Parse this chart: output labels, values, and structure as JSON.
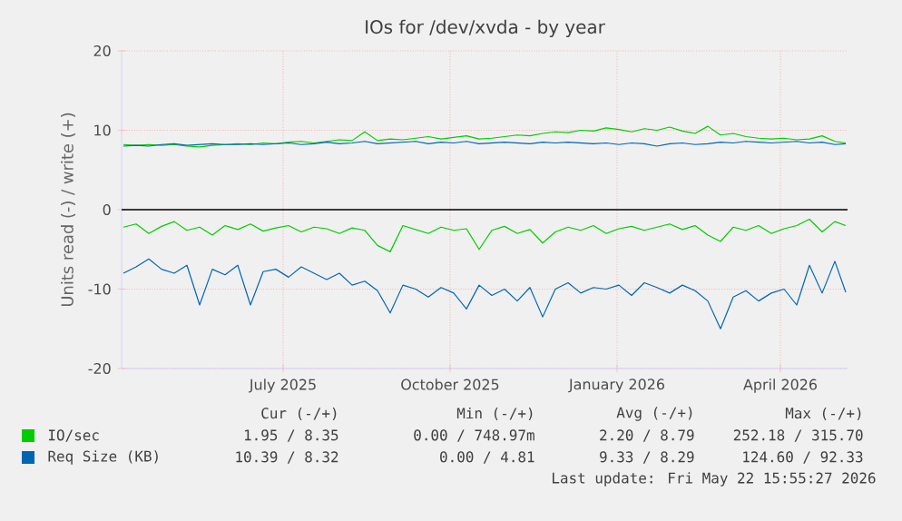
{
  "chart_data": {
    "type": "line",
    "title": "IOs for /dev/xvda - by year",
    "ylabel": "Units read (-) / write (+)",
    "x": [
      "2025-04-19",
      "2025-04-26",
      "2025-05-03",
      "2025-05-10",
      "2025-05-17",
      "2025-05-24",
      "2025-05-31",
      "2025-06-07",
      "2025-06-14",
      "2025-06-21",
      "2025-06-28",
      "2025-07-05",
      "2025-07-12",
      "2025-07-19",
      "2025-07-26",
      "2025-08-02",
      "2025-08-09",
      "2025-08-16",
      "2025-08-23",
      "2025-08-30",
      "2025-09-06",
      "2025-09-13",
      "2025-09-20",
      "2025-09-27",
      "2025-10-04",
      "2025-10-11",
      "2025-10-18",
      "2025-10-25",
      "2025-11-01",
      "2025-11-08",
      "2025-11-15",
      "2025-11-22",
      "2025-11-29",
      "2025-12-06",
      "2025-12-13",
      "2025-12-20",
      "2025-12-27",
      "2026-01-03",
      "2026-01-10",
      "2026-01-17",
      "2026-01-24",
      "2026-01-31",
      "2026-02-07",
      "2026-02-14",
      "2026-02-21",
      "2026-02-28",
      "2026-03-07",
      "2026-03-14",
      "2026-03-21",
      "2026-03-28",
      "2026-04-04",
      "2026-04-11",
      "2026-04-18",
      "2026-04-25",
      "2026-05-02",
      "2026-05-09",
      "2026-05-16",
      "2026-05-22"
    ],
    "series": [
      {
        "name": "IO/sec",
        "color": "#00cc00",
        "values": [
          -2.2,
          -1.8,
          -3.0,
          -2.1,
          -1.5,
          -2.6,
          -2.2,
          -3.2,
          -2.0,
          -2.5,
          -1.8,
          -2.7,
          -2.3,
          -2.0,
          -2.8,
          -2.2,
          -2.4,
          -3.0,
          -2.3,
          -2.6,
          -4.5,
          -5.3,
          -2.0,
          -2.5,
          -3.0,
          -2.2,
          -2.6,
          -2.4,
          -5.0,
          -2.6,
          -2.1,
          -3.0,
          -2.5,
          -4.2,
          -2.8,
          -2.2,
          -2.6,
          -2.0,
          -3.0,
          -2.4,
          -2.1,
          -2.6,
          -2.2,
          -1.8,
          -2.5,
          -2.0,
          -3.2,
          -4.0,
          -2.2,
          -2.6,
          -2.0,
          -3.0,
          -2.4,
          -2.0,
          -1.2,
          -2.8,
          -1.5,
          -2.0
        ]
      },
      {
        "color": "#00cc00",
        "values": [
          8.2,
          8.1,
          8.2,
          8.1,
          8.2,
          8.0,
          7.9,
          8.1,
          8.2,
          8.3,
          8.2,
          8.4,
          8.3,
          8.5,
          8.6,
          8.4,
          8.6,
          8.8,
          8.7,
          9.8,
          8.7,
          8.9,
          8.8,
          9.0,
          9.2,
          8.9,
          9.1,
          9.3,
          8.9,
          9.0,
          9.2,
          9.4,
          9.3,
          9.6,
          9.8,
          9.7,
          10.0,
          9.9,
          10.3,
          10.1,
          9.8,
          10.2,
          10.0,
          10.4,
          9.9,
          9.6,
          10.5,
          9.4,
          9.6,
          9.2,
          9.0,
          8.9,
          9.0,
          8.8,
          8.9,
          9.3,
          8.6,
          8.4
        ]
      },
      {
        "name": "Req Size (KB)",
        "color": "#0066b3",
        "values": [
          -8.0,
          -7.2,
          -6.2,
          -7.5,
          -8.0,
          -7.0,
          -12.0,
          -7.5,
          -8.2,
          -7.0,
          -12.0,
          -7.8,
          -7.5,
          -8.5,
          -7.2,
          -8.0,
          -8.8,
          -8.0,
          -9.5,
          -9.0,
          -10.2,
          -13.0,
          -9.5,
          -10.0,
          -11.0,
          -9.8,
          -10.5,
          -12.5,
          -9.5,
          -10.8,
          -10.0,
          -11.5,
          -9.8,
          -13.5,
          -10.0,
          -9.2,
          -10.5,
          -9.8,
          -10.0,
          -9.5,
          -10.8,
          -9.2,
          -9.8,
          -10.5,
          -9.5,
          -10.2,
          -11.5,
          -15.0,
          -11.0,
          -10.2,
          -11.5,
          -10.5,
          -10.0,
          -12.0,
          -7.0,
          -10.5,
          -6.5,
          -10.4
        ]
      },
      {
        "color": "#0066b3",
        "values": [
          8.0,
          8.1,
          8.0,
          8.2,
          8.3,
          8.1,
          8.2,
          8.3,
          8.2,
          8.2,
          8.3,
          8.2,
          8.3,
          8.4,
          8.2,
          8.3,
          8.5,
          8.3,
          8.4,
          8.6,
          8.3,
          8.4,
          8.5,
          8.6,
          8.3,
          8.5,
          8.4,
          8.6,
          8.3,
          8.4,
          8.5,
          8.4,
          8.3,
          8.5,
          8.4,
          8.5,
          8.4,
          8.3,
          8.4,
          8.2,
          8.4,
          8.3,
          8.0,
          8.3,
          8.4,
          8.2,
          8.3,
          8.5,
          8.4,
          8.6,
          8.5,
          8.4,
          8.5,
          8.6,
          8.4,
          8.5,
          8.2,
          8.3
        ]
      }
    ],
    "xlim": [
      "2025-04-18",
      "2026-05-23"
    ],
    "xticks": [
      {
        "value": "2025-07-16",
        "label": "July 2025"
      },
      {
        "value": "2025-10-16",
        "label": "October 2025"
      },
      {
        "value": "2026-01-16",
        "label": "January 2026"
      },
      {
        "value": "2026-04-16",
        "label": "April 2026"
      }
    ],
    "ylim": [
      -20,
      20
    ],
    "yticks": [
      -20,
      -10,
      0,
      10,
      20
    ],
    "grid": true,
    "legend": "bottom",
    "ref_lines": [
      {
        "axis": "y",
        "value": 0,
        "color": "#000000"
      }
    ],
    "annotations": [
      "Cur (-/+)",
      "Min (-/+)",
      "Avg (-/+)",
      "Max (-/+)",
      "1.95 / 8.35",
      "0.00 / 748.97m",
      "2.20 / 8.79",
      "252.18 / 315.70",
      "10.39 / 8.32",
      "0.00 / 4.81",
      "9.33 / 8.29",
      "124.60 / 92.33",
      "Last update: Fri May 22 15:55:27 2026"
    ]
  }
}
